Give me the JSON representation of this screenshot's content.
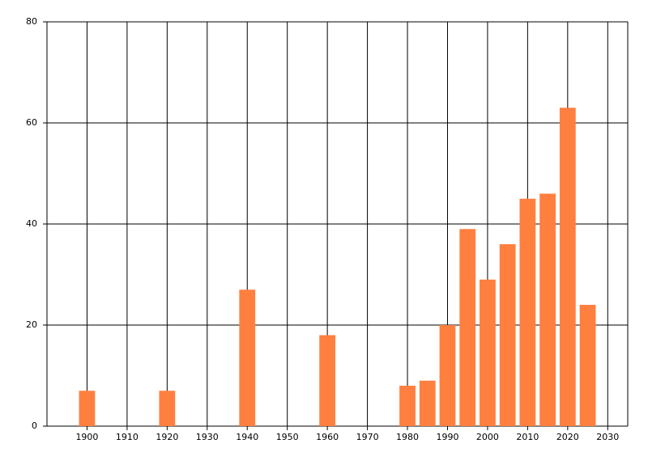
{
  "chart_data": {
    "type": "bar",
    "x": [
      1900,
      1920,
      1940,
      1960,
      1980,
      1985,
      1990,
      1995,
      2000,
      2005,
      2010,
      2015,
      2020,
      2025
    ],
    "values": [
      7,
      7,
      27,
      18,
      8,
      9,
      20,
      39,
      29,
      36,
      45,
      46,
      63,
      24
    ],
    "color": "#ff7f3f",
    "xlim": [
      1890,
      2035
    ],
    "xticks": [
      1900,
      1910,
      1920,
      1930,
      1940,
      1950,
      1960,
      1970,
      1980,
      1990,
      2000,
      2010,
      2020,
      2030
    ],
    "ylim": [
      0,
      80
    ],
    "yticks": [
      0,
      20,
      40,
      60,
      80
    ],
    "grid": true
  }
}
